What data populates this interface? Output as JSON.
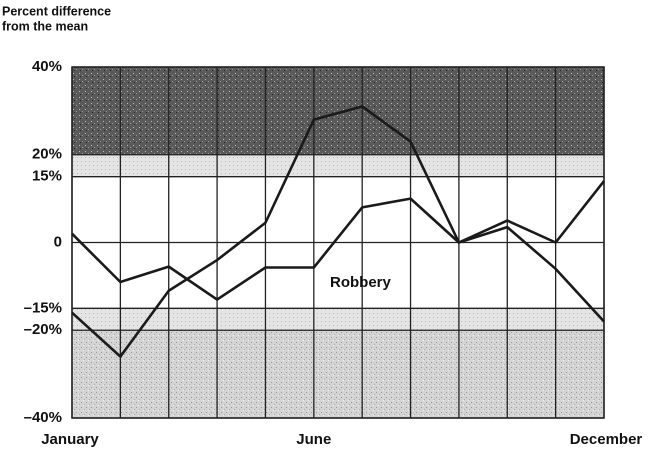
{
  "chart_data": {
    "type": "line",
    "y_label": [
      "Percent difference",
      "from the mean"
    ],
    "categories": [
      "January",
      null,
      null,
      null,
      null,
      "June",
      null,
      null,
      null,
      null,
      null,
      "December"
    ],
    "series": [
      {
        "name": "Robbery",
        "color": "#1a1a1a",
        "values": [
          2,
          -9,
          -5.5,
          -13,
          -5.7,
          -5.7,
          8,
          10,
          0,
          5,
          0,
          14
        ]
      },
      {
        "color": "#1a1a1a",
        "values": [
          -16,
          -26,
          -11,
          -4,
          4.5,
          28,
          31,
          23,
          0,
          3.5,
          -6,
          -18
        ]
      }
    ],
    "ylim": [
      -40,
      40
    ],
    "yticks": [
      {
        "value": 40,
        "label": "40%"
      },
      {
        "value": 20,
        "label": "20%"
      },
      {
        "value": 15,
        "label": "15%"
      },
      0,
      {
        "value": -15,
        "label": "–15%"
      },
      {
        "value": -20,
        "label": "–20%"
      },
      {
        "value": -40,
        "label": "–40%"
      }
    ],
    "grid": true
  }
}
